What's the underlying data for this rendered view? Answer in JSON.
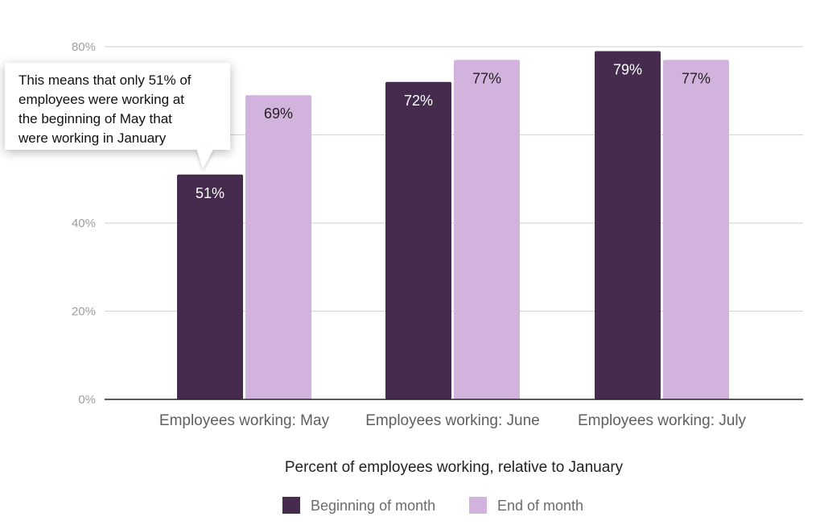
{
  "chart_data": {
    "type": "bar",
    "categories": [
      "Employees working: May",
      "Employees working: June",
      "Employees working: July"
    ],
    "series": [
      {
        "name": "Beginning of month",
        "values": [
          51,
          72,
          79
        ],
        "labels": [
          "51%",
          "72%",
          "79%"
        ],
        "color": "#452c4f",
        "label_color": "#ffffff"
      },
      {
        "name": "End of month",
        "values": [
          69,
          77,
          77
        ],
        "labels": [
          "69%",
          "77%",
          "77%"
        ],
        "color": "#d1b3de",
        "label_color": "#222222"
      }
    ],
    "xlabel": "Percent of employees working, relative to January",
    "ylabel": "",
    "ylim": [
      0,
      80
    ],
    "yticks": [
      0,
      20,
      40,
      80
    ],
    "ytick_labels": [
      "0%",
      "20%",
      "40%",
      "80%"
    ],
    "grid": true,
    "legend_position": "bottom",
    "annotation": {
      "lines": [
        "This means that only 51% of",
        "employees were working at",
        "the beginning of May that",
        "were working in January"
      ],
      "points_to": "Employees working: May, Beginning of month"
    }
  }
}
